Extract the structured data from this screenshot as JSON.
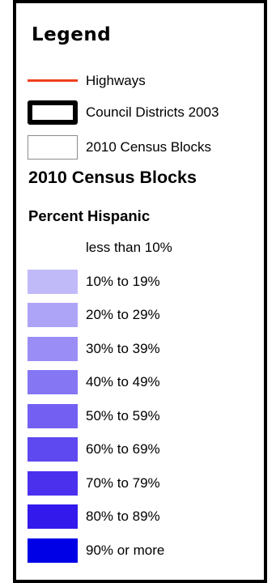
{
  "legend": {
    "title": "Legend",
    "layers": [
      {
        "label": "Highways",
        "symbol": "line",
        "color": "#f0401e"
      },
      {
        "label": "Council Districts 2003",
        "symbol": "thick-outline-box",
        "color": "#000000"
      },
      {
        "label": "2010 Census Blocks",
        "symbol": "thin-outline-box",
        "color": "#8c8c8c"
      }
    ],
    "section_title": "2010 Census Blocks",
    "subsection_title": "Percent Hispanic",
    "classes": [
      {
        "label": "less than 10%",
        "color": "#ffffff"
      },
      {
        "label": "10% to 19%",
        "color": "#c1baf9"
      },
      {
        "label": "20% to 29%",
        "color": "#ada4f8"
      },
      {
        "label": "30% to 39%",
        "color": "#9a8ef6"
      },
      {
        "label": "40% to 49%",
        "color": "#8576f4"
      },
      {
        "label": "50% to 59%",
        "color": "#7360f2"
      },
      {
        "label": "60% to 69%",
        "color": "#5e48f0"
      },
      {
        "label": "70% to 79%",
        "color": "#4b31ee"
      },
      {
        "label": "80% to 89%",
        "color": "#3419ec"
      },
      {
        "label": "90% or more",
        "color": "#0000e6"
      }
    ]
  }
}
